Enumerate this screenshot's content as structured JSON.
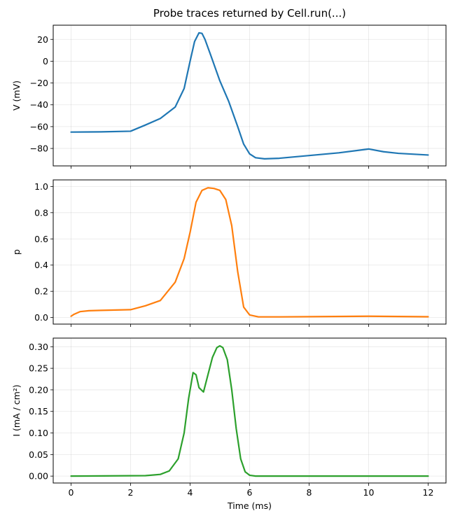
{
  "chart_data": {
    "type": "line",
    "title": "Probe traces returned by Cell.run(...)",
    "xlabel": "Time (ms)",
    "xlim": [
      -0.6,
      12.6
    ],
    "xticks": [
      0,
      2,
      4,
      6,
      8,
      10,
      12
    ],
    "panels": [
      {
        "ylabel": "V (mV)",
        "ylim": [
          -96,
          33
        ],
        "yticks": [
          20,
          0,
          -20,
          -40,
          -60,
          -80
        ],
        "color": "#1f77b4",
        "series": [
          {
            "x": [
              0,
              1,
              2,
              2.5,
              3,
              3.5,
              3.8,
              4.0,
              4.15,
              4.3,
              4.4,
              4.5,
              4.7,
              5.0,
              5.3,
              5.6,
              5.8,
              6.0,
              6.2,
              6.5,
              7.0,
              8.0,
              9.0,
              10.0,
              10.5,
              11.0,
              12.0
            ],
            "y": [
              -65,
              -64.8,
              -64.2,
              -58.5,
              -52.5,
              -42,
              -25,
              0,
              18,
              26,
              25.5,
              20,
              5,
              -18,
              -37,
              -60,
              -76,
              -85,
              -88.5,
              -89.5,
              -89,
              -86.5,
              -84,
              -80.5,
              -83,
              -84.5,
              -86
            ]
          }
        ]
      },
      {
        "ylabel": "p",
        "ylim": [
          -0.05,
          1.05
        ],
        "yticks": [
          0.0,
          0.2,
          0.4,
          0.6,
          0.8,
          1.0
        ],
        "color": "#ff7f0e",
        "series": [
          {
            "x": [
              0,
              0.1,
              0.3,
              0.6,
              1.0,
              2.0,
              2.5,
              3.0,
              3.5,
              3.8,
              4.0,
              4.2,
              4.4,
              4.6,
              4.8,
              5.0,
              5.2,
              5.4,
              5.6,
              5.8,
              6.0,
              6.3,
              7.0,
              10.0,
              12.0
            ],
            "y": [
              0.01,
              0.025,
              0.045,
              0.052,
              0.055,
              0.06,
              0.09,
              0.13,
              0.27,
              0.45,
              0.65,
              0.88,
              0.97,
              0.99,
              0.985,
              0.97,
              0.9,
              0.7,
              0.35,
              0.08,
              0.02,
              0.005,
              0.005,
              0.01,
              0.006
            ]
          }
        ]
      },
      {
        "ylabel": "I (mA / cm²)",
        "ylim": [
          -0.016,
          0.32
        ],
        "yticks": [
          0.0,
          0.05,
          0.1,
          0.15,
          0.2,
          0.25,
          0.3
        ],
        "color": "#2ca02c",
        "series": [
          {
            "x": [
              0,
              2.5,
              3.0,
              3.3,
              3.6,
              3.8,
              3.95,
              4.1,
              4.2,
              4.3,
              4.45,
              4.6,
              4.75,
              4.9,
              5.0,
              5.1,
              5.25,
              5.4,
              5.55,
              5.7,
              5.85,
              6.0,
              6.2,
              7.0,
              12.0
            ],
            "y": [
              0.0,
              0.001,
              0.004,
              0.012,
              0.04,
              0.1,
              0.18,
              0.24,
              0.235,
              0.205,
              0.195,
              0.235,
              0.275,
              0.298,
              0.302,
              0.298,
              0.27,
              0.2,
              0.11,
              0.04,
              0.01,
              0.002,
              0.0,
              0.0,
              0.0
            ]
          }
        ]
      }
    ],
    "grid": true
  }
}
